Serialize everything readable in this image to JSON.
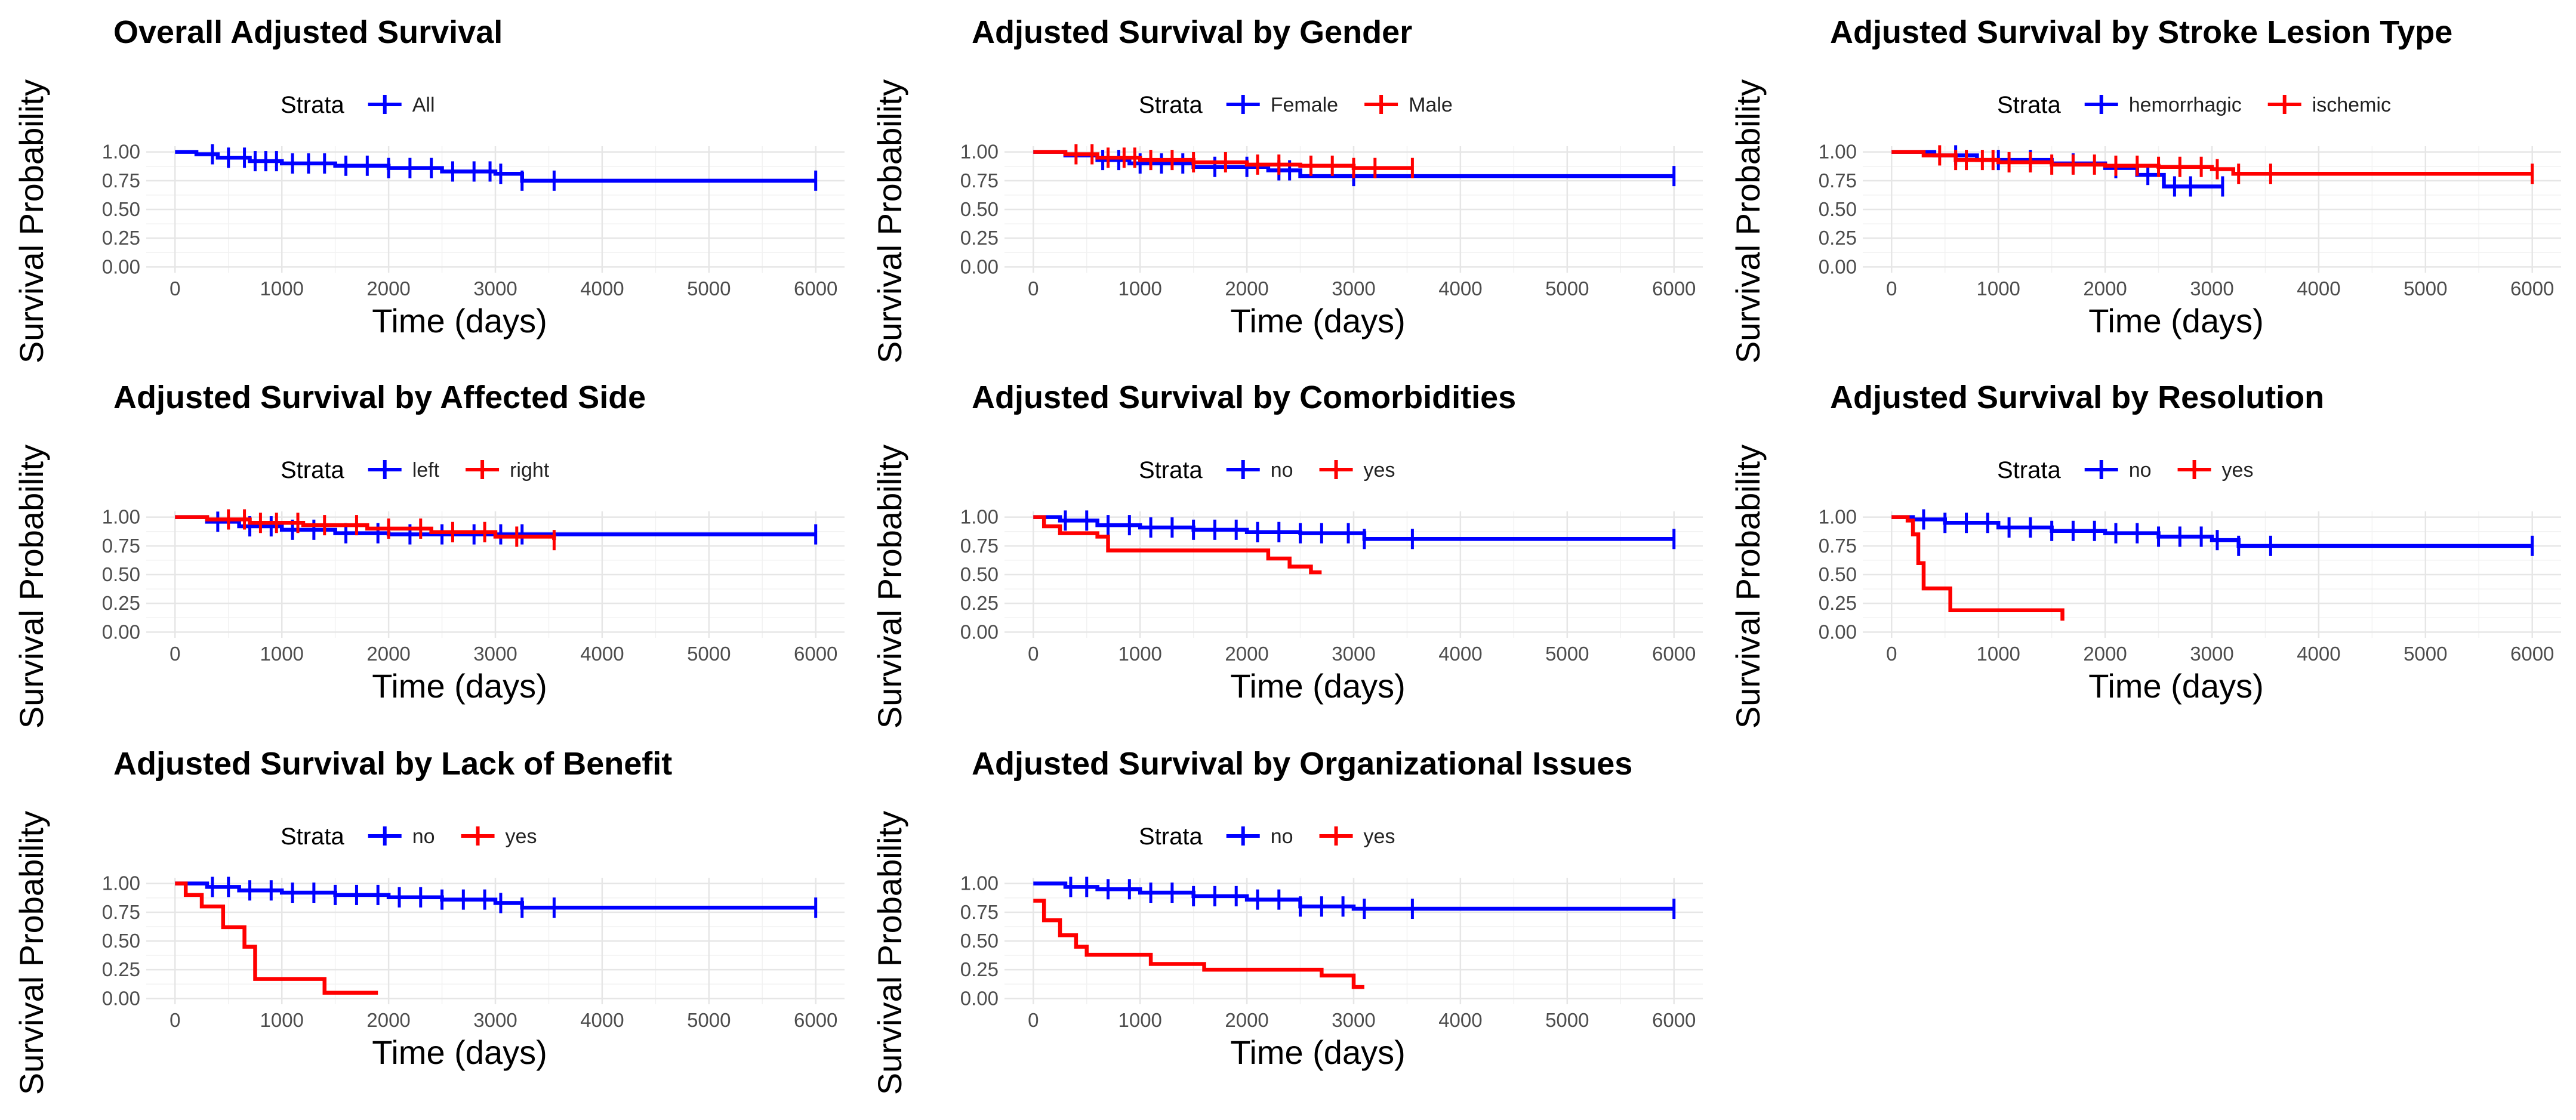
{
  "chart_data": [
    {
      "type": "line",
      "title": "Overall Adjusted Survival",
      "xlabel": "Time (days)",
      "ylabel": "Survival Probability",
      "xlim": [
        0,
        6000
      ],
      "ylim": [
        0,
        1
      ],
      "xticks": [
        "0",
        "1000",
        "2000",
        "3000",
        "4000",
        "5000",
        "6000"
      ],
      "yticks": [
        "0.00",
        "0.25",
        "0.50",
        "0.75",
        "1.00"
      ],
      "legend_title": "Strata",
      "series": [
        {
          "name": "All",
          "color": "#0000ff",
          "x": [
            0,
            200,
            400,
            700,
            1000,
            1500,
            2000,
            2500,
            3000,
            3250,
            6000
          ],
          "y": [
            1.0,
            0.98,
            0.95,
            0.92,
            0.9,
            0.88,
            0.86,
            0.83,
            0.81,
            0.75,
            0.75
          ],
          "censor": [
            350,
            500,
            650,
            750,
            850,
            950,
            1100,
            1250,
            1400,
            1600,
            1800,
            2000,
            2200,
            2400,
            2600,
            2800,
            2950,
            3050,
            3250,
            3550,
            6000
          ]
        }
      ]
    },
    {
      "type": "line",
      "title": "Adjusted Survival by Gender",
      "xlabel": "Time (days)",
      "ylabel": "Survival Probability",
      "xlim": [
        0,
        6000
      ],
      "ylim": [
        0,
        1
      ],
      "xticks": [
        "0",
        "1000",
        "2000",
        "3000",
        "4000",
        "5000",
        "6000"
      ],
      "yticks": [
        "0.00",
        "0.25",
        "0.50",
        "0.75",
        "1.00"
      ],
      "legend_title": "Strata",
      "series": [
        {
          "name": "Female",
          "color": "#0000ff",
          "x": [
            0,
            300,
            600,
            900,
            1500,
            2200,
            2500,
            6000
          ],
          "y": [
            1.0,
            0.97,
            0.93,
            0.9,
            0.87,
            0.84,
            0.79,
            0.79
          ],
          "censor": [
            650,
            800,
            1000,
            1200,
            1400,
            1700,
            2000,
            2300,
            2400,
            3000,
            6000
          ]
        },
        {
          "name": "Male",
          "color": "#ff0000",
          "x": [
            0,
            300,
            600,
            1000,
            1500,
            2000,
            2500,
            3000,
            3550
          ],
          "y": [
            1.0,
            0.98,
            0.95,
            0.93,
            0.91,
            0.89,
            0.88,
            0.86,
            0.86
          ],
          "censor": [
            400,
            550,
            700,
            850,
            950,
            1100,
            1300,
            1500,
            1800,
            2100,
            2300,
            2600,
            2800,
            3000,
            3200,
            3550
          ]
        }
      ]
    },
    {
      "type": "line",
      "title": "Adjusted Survival by Stroke Lesion Type",
      "xlabel": "Time (days)",
      "ylabel": "Survival Probability",
      "xlim": [
        0,
        6000
      ],
      "ylim": [
        0,
        1
      ],
      "xticks": [
        "0",
        "1000",
        "2000",
        "3000",
        "4000",
        "5000",
        "6000"
      ],
      "yticks": [
        "0.00",
        "0.25",
        "0.50",
        "0.75",
        "1.00"
      ],
      "legend_title": "Strata",
      "series": [
        {
          "name": "hemorrhagic",
          "color": "#0000ff",
          "x": [
            0,
            400,
            800,
            1500,
            2000,
            2300,
            2550,
            3100
          ],
          "y": [
            1.0,
            0.97,
            0.93,
            0.9,
            0.86,
            0.8,
            0.7,
            0.7
          ],
          "censor": [
            600,
            1000,
            1300,
            1700,
            2100,
            2400,
            2650,
            2800,
            3100
          ]
        },
        {
          "name": "ischemic",
          "color": "#ff0000",
          "x": [
            0,
            300,
            600,
            1000,
            1500,
            2000,
            2500,
            3000,
            3200,
            6000
          ],
          "y": [
            1.0,
            0.97,
            0.93,
            0.91,
            0.89,
            0.88,
            0.87,
            0.85,
            0.81,
            0.81
          ],
          "censor": [
            450,
            600,
            700,
            850,
            950,
            1100,
            1300,
            1500,
            1700,
            1900,
            2100,
            2300,
            2500,
            2700,
            2900,
            3050,
            3250,
            3550,
            6000
          ]
        }
      ]
    },
    {
      "type": "line",
      "title": "Adjusted Survival by Affected Side",
      "xlabel": "Time (days)",
      "ylabel": "Survival Probability",
      "xlim": [
        0,
        6000
      ],
      "ylim": [
        0,
        1
      ],
      "xticks": [
        "0",
        "1000",
        "2000",
        "3000",
        "4000",
        "5000",
        "6000"
      ],
      "yticks": [
        "0.00",
        "0.25",
        "0.50",
        "0.75",
        "1.00"
      ],
      "legend_title": "Strata",
      "series": [
        {
          "name": "left",
          "color": "#0000ff",
          "x": [
            0,
            300,
            600,
            1000,
            1500,
            2000,
            2500,
            3000,
            6000
          ],
          "y": [
            1.0,
            0.96,
            0.92,
            0.89,
            0.86,
            0.85,
            0.85,
            0.85,
            0.85
          ],
          "censor": [
            400,
            700,
            900,
            1100,
            1300,
            1600,
            1900,
            2200,
            2500,
            2800,
            3050,
            3250,
            6000
          ]
        },
        {
          "name": "right",
          "color": "#ff0000",
          "x": [
            0,
            300,
            700,
            1200,
            1800,
            2400,
            3000,
            3550
          ],
          "y": [
            1.0,
            0.98,
            0.95,
            0.93,
            0.9,
            0.87,
            0.83,
            0.8
          ],
          "censor": [
            500,
            650,
            800,
            950,
            1150,
            1400,
            1700,
            2000,
            2300,
            2600,
            2900,
            3200,
            3550
          ]
        }
      ]
    },
    {
      "type": "line",
      "title": "Adjusted Survival by Comorbidities",
      "xlabel": "Time (days)",
      "ylabel": "Survival Probability",
      "xlim": [
        0,
        6000
      ],
      "ylim": [
        0,
        1
      ],
      "xticks": [
        "0",
        "1000",
        "2000",
        "3000",
        "4000",
        "5000",
        "6000"
      ],
      "yticks": [
        "0.00",
        "0.25",
        "0.50",
        "0.75",
        "1.00"
      ],
      "legend_title": "Strata",
      "series": [
        {
          "name": "no",
          "color": "#0000ff",
          "x": [
            0,
            250,
            600,
            1000,
            1500,
            2000,
            2500,
            3100,
            6000
          ],
          "y": [
            1.0,
            0.97,
            0.93,
            0.91,
            0.89,
            0.87,
            0.86,
            0.81,
            0.81
          ],
          "censor": [
            300,
            500,
            700,
            900,
            1100,
            1300,
            1500,
            1700,
            1900,
            2100,
            2300,
            2500,
            2700,
            2950,
            3100,
            3550,
            6000
          ]
        },
        {
          "name": "yes",
          "color": "#ff0000",
          "x": [
            0,
            100,
            250,
            600,
            700,
            1200,
            2200,
            2400,
            2600,
            2700
          ],
          "y": [
            1.0,
            0.92,
            0.86,
            0.83,
            0.71,
            0.71,
            0.64,
            0.57,
            0.52,
            0.52
          ],
          "censor": []
        }
      ]
    },
    {
      "type": "line",
      "title": "Adjusted Survival by Resolution",
      "xlabel": "Time (days)",
      "ylabel": "Survival Probability",
      "xlim": [
        0,
        6000
      ],
      "ylim": [
        0,
        1
      ],
      "xticks": [
        "0",
        "1000",
        "2000",
        "3000",
        "4000",
        "5000",
        "6000"
      ],
      "yticks": [
        "0.00",
        "0.25",
        "0.50",
        "0.75",
        "1.00"
      ],
      "legend_title": "Strata",
      "series": [
        {
          "name": "no",
          "color": "#0000ff",
          "x": [
            0,
            200,
            500,
            1000,
            1500,
            2000,
            2500,
            3000,
            3250,
            6000
          ],
          "y": [
            1.0,
            0.98,
            0.95,
            0.91,
            0.88,
            0.86,
            0.83,
            0.8,
            0.75,
            0.75
          ],
          "censor": [
            300,
            500,
            700,
            900,
            1100,
            1300,
            1500,
            1700,
            1900,
            2100,
            2300,
            2500,
            2700,
            2900,
            3050,
            3250,
            3550,
            6000
          ]
        },
        {
          "name": "yes",
          "color": "#ff0000",
          "x": [
            0,
            150,
            200,
            250,
            300,
            550,
            1600
          ],
          "y": [
            1.0,
            0.97,
            0.85,
            0.6,
            0.38,
            0.19,
            0.1
          ],
          "censor": []
        }
      ]
    },
    {
      "type": "line",
      "title": "Adjusted Survival by Lack of Benefit",
      "xlabel": "Time (days)",
      "ylabel": "Survival Probability",
      "xlim": [
        0,
        6000
      ],
      "ylim": [
        0,
        1
      ],
      "xticks": [
        "0",
        "1000",
        "2000",
        "3000",
        "4000",
        "5000",
        "6000"
      ],
      "yticks": [
        "0.00",
        "0.25",
        "0.50",
        "0.75",
        "1.00"
      ],
      "legend_title": "Strata",
      "series": [
        {
          "name": "no",
          "color": "#0000ff",
          "x": [
            0,
            300,
            600,
            1000,
            1500,
            2000,
            2500,
            3000,
            3250,
            6000
          ],
          "y": [
            1.0,
            0.97,
            0.94,
            0.92,
            0.9,
            0.88,
            0.86,
            0.83,
            0.79,
            0.79
          ],
          "censor": [
            350,
            500,
            700,
            900,
            1100,
            1300,
            1500,
            1700,
            1900,
            2100,
            2300,
            2500,
            2700,
            2900,
            3050,
            3250,
            3550,
            6000
          ]
        },
        {
          "name": "yes",
          "color": "#ff0000",
          "x": [
            0,
            100,
            250,
            450,
            650,
            750,
            1400,
            1900
          ],
          "y": [
            1.0,
            0.9,
            0.8,
            0.62,
            0.45,
            0.17,
            0.05,
            0.05
          ],
          "censor": []
        }
      ]
    },
    {
      "type": "line",
      "title": "Adjusted Survival by Organizational Issues",
      "xlabel": "Time (days)",
      "ylabel": "Survival Probability",
      "xlim": [
        0,
        6000
      ],
      "ylim": [
        0,
        1
      ],
      "xticks": [
        "0",
        "1000",
        "2000",
        "3000",
        "4000",
        "5000",
        "6000"
      ],
      "yticks": [
        "0.00",
        "0.25",
        "0.50",
        "0.75",
        "1.00"
      ],
      "legend_title": "Strata",
      "series": [
        {
          "name": "no",
          "color": "#0000ff",
          "x": [
            0,
            300,
            600,
            1000,
            1500,
            2000,
            2500,
            3000,
            6000
          ],
          "y": [
            1.0,
            0.97,
            0.95,
            0.92,
            0.89,
            0.86,
            0.8,
            0.78,
            0.78
          ],
          "censor": [
            350,
            500,
            700,
            900,
            1100,
            1300,
            1500,
            1700,
            1900,
            2100,
            2300,
            2500,
            2700,
            2900,
            3100,
            3550,
            6000
          ]
        },
        {
          "name": "yes",
          "color": "#ff0000",
          "x": [
            0,
            100,
            250,
            400,
            500,
            1100,
            1600,
            2700,
            3000,
            3100
          ],
          "y": [
            0.85,
            0.68,
            0.55,
            0.45,
            0.38,
            0.3,
            0.25,
            0.2,
            0.1,
            0.1
          ],
          "censor": []
        }
      ]
    }
  ]
}
